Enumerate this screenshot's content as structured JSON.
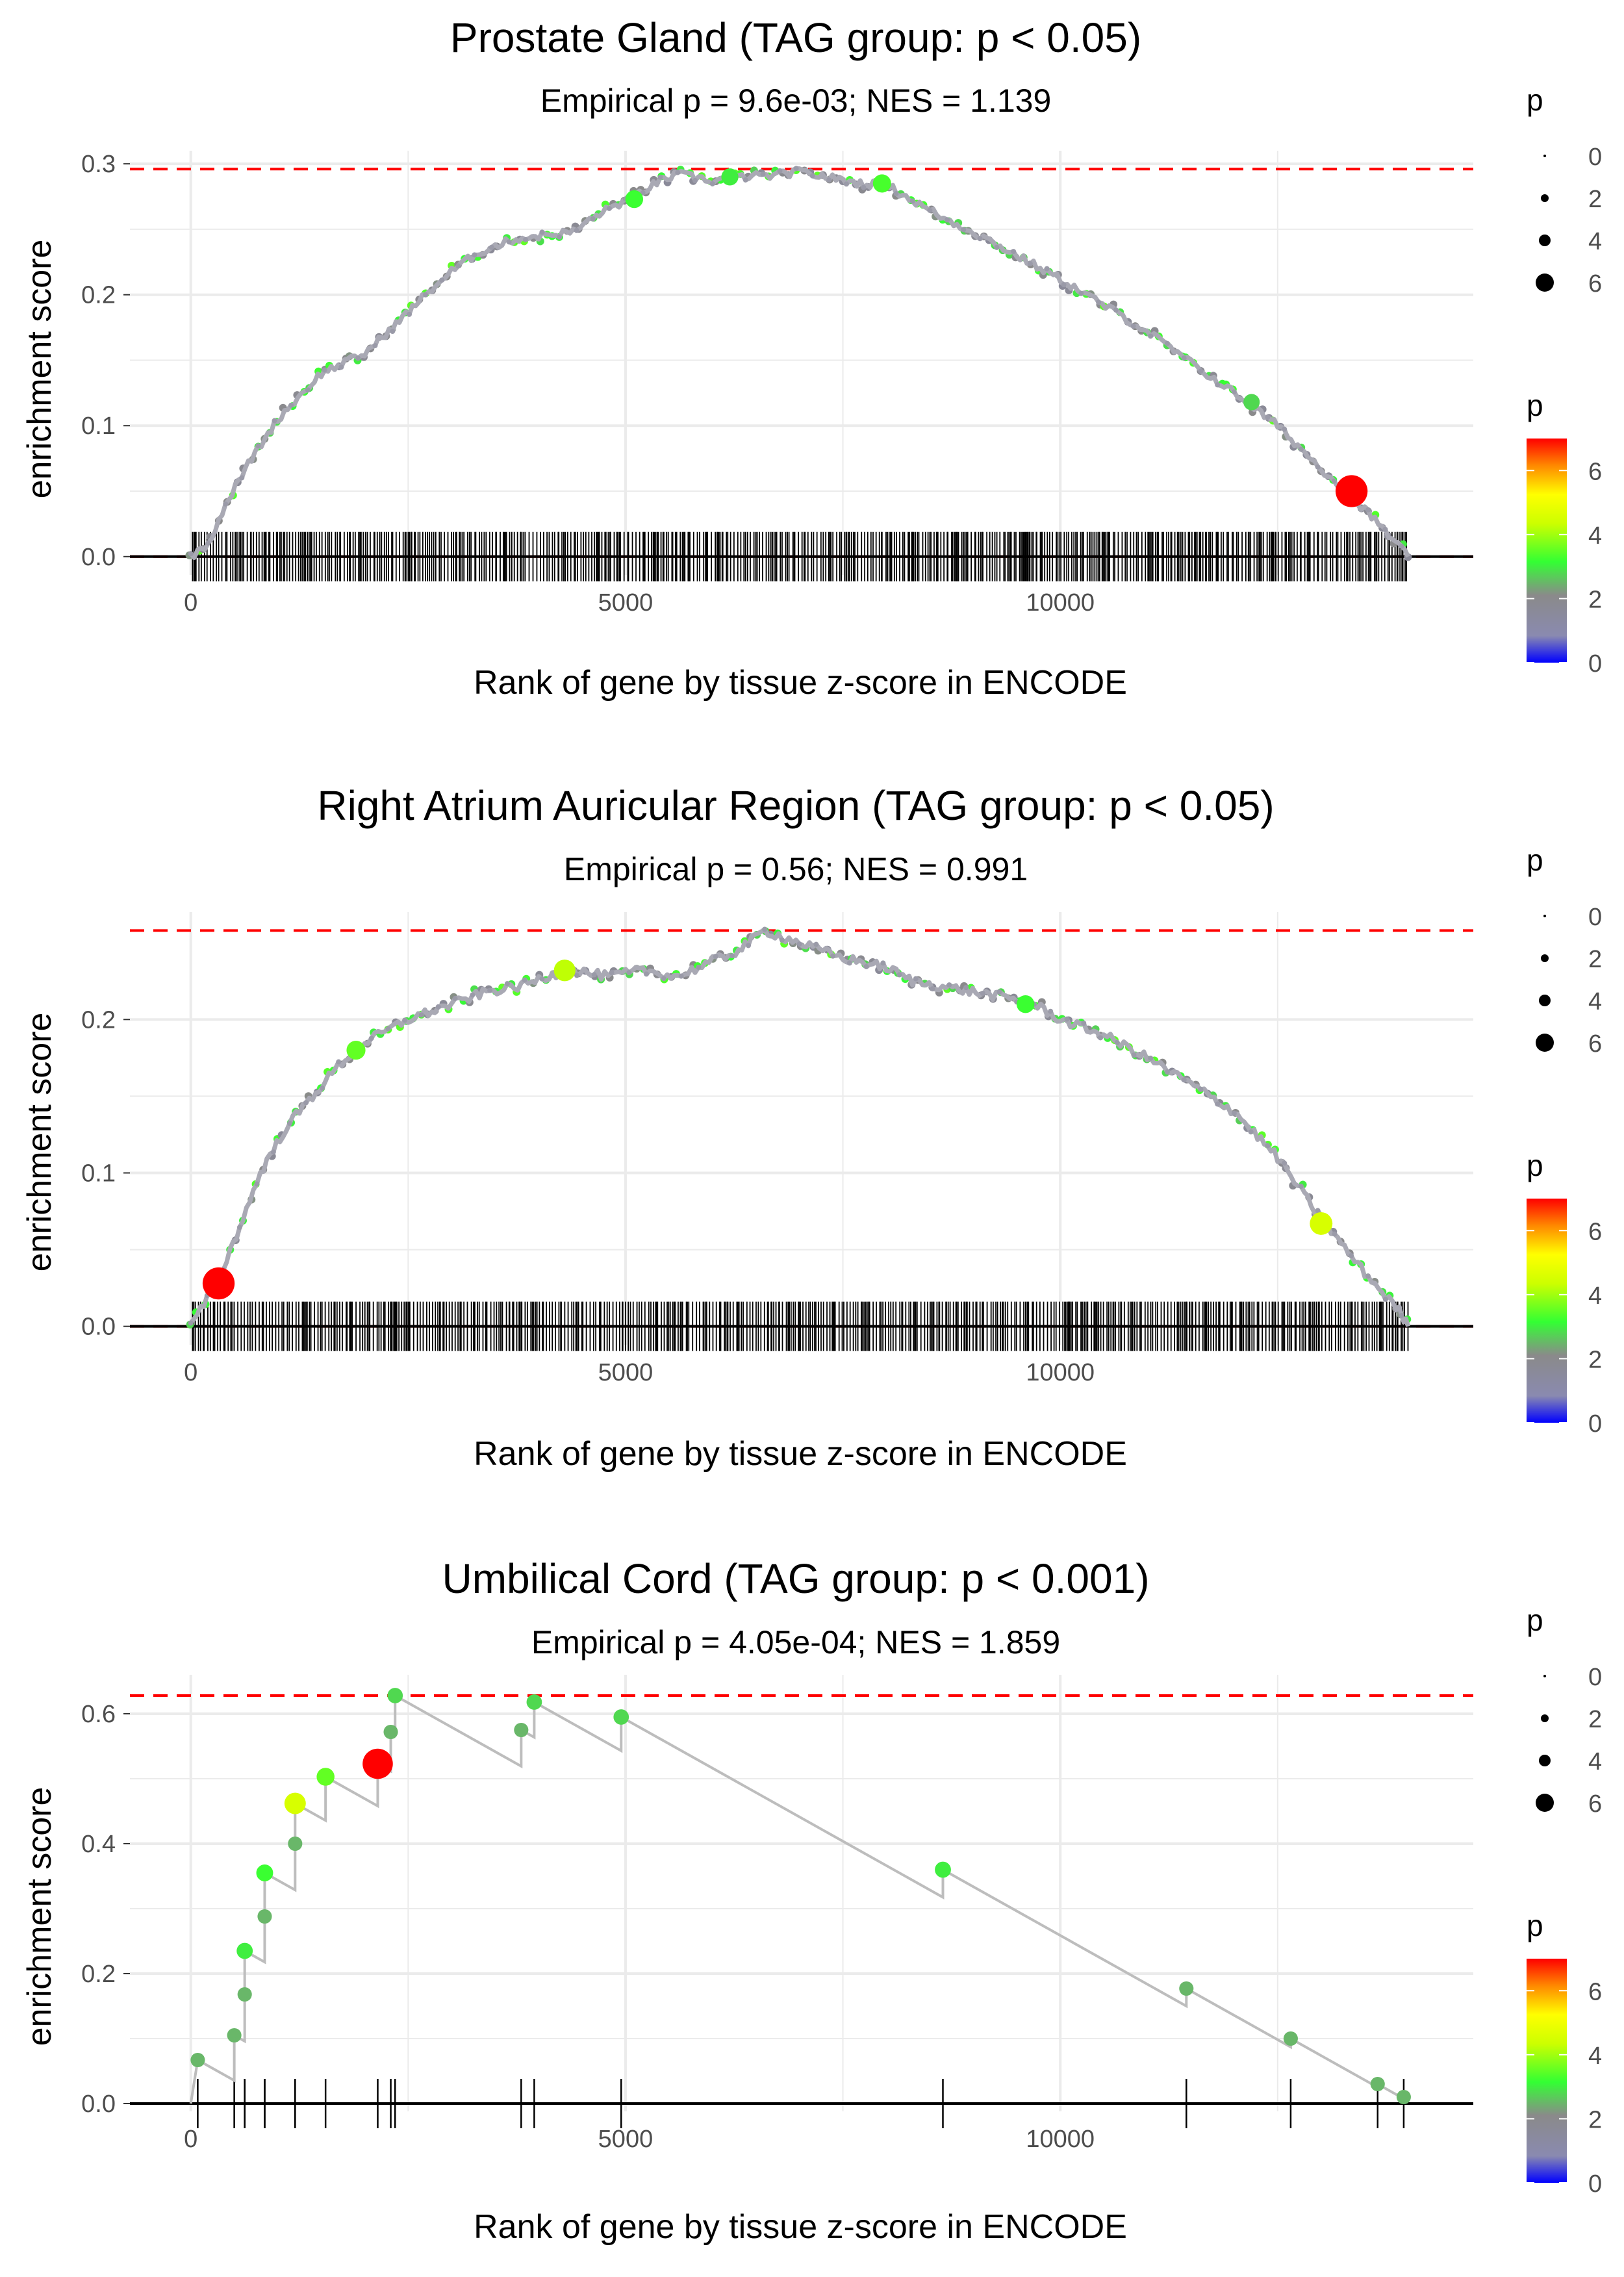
{
  "colors": {
    "curve": "#bdbdbd",
    "ref_line": "#ff0000",
    "grid": "#ebebeb",
    "axis_text": "#4d4d4d",
    "ticks_rug": "#000000"
  },
  "chart_data": [
    {
      "type": "line",
      "title": "Prostate Gland (TAG group: p < 0.05)",
      "subtitle": "Empirical p = 9.6e-03; NES = 1.139",
      "xlabel": "Rank of gene by tissue z-score in ENCODE",
      "ylabel": "enrichment score",
      "xlim": [
        -700,
        14750
      ],
      "ylim": [
        -0.014,
        0.31
      ],
      "xticks": [
        0,
        5000,
        10000
      ],
      "xtick_labels": [
        "0",
        "5000",
        "10000"
      ],
      "yticks": [
        0.0,
        0.1,
        0.2,
        0.3
      ],
      "ytick_labels": [
        "0.0",
        "0.1",
        "0.2",
        "0.3"
      ],
      "max_es": 0.296,
      "grid": true,
      "n_genes": 14000,
      "dense": true,
      "curve": [
        [
          0,
          0
        ],
        [
          200,
          0.01
        ],
        [
          400,
          0.04
        ],
        [
          700,
          0.075
        ],
        [
          1000,
          0.105
        ],
        [
          1500,
          0.14
        ],
        [
          2000,
          0.155
        ],
        [
          2400,
          0.18
        ],
        [
          2700,
          0.2
        ],
        [
          3000,
          0.218
        ],
        [
          3300,
          0.232
        ],
        [
          3700,
          0.242
        ],
        [
          4000,
          0.245
        ],
        [
          4400,
          0.248
        ],
        [
          4700,
          0.262
        ],
        [
          5000,
          0.272
        ],
        [
          5400,
          0.287
        ],
        [
          5600,
          0.292
        ],
        [
          6000,
          0.287
        ],
        [
          6300,
          0.29
        ],
        [
          6700,
          0.291
        ],
        [
          7000,
          0.294
        ],
        [
          7300,
          0.29
        ],
        [
          7700,
          0.285
        ],
        [
          8000,
          0.284
        ],
        [
          8300,
          0.272
        ],
        [
          8700,
          0.257
        ],
        [
          9000,
          0.248
        ],
        [
          9500,
          0.23
        ],
        [
          10000,
          0.212
        ],
        [
          10400,
          0.196
        ],
        [
          11000,
          0.172
        ],
        [
          11500,
          0.148
        ],
        [
          12000,
          0.125
        ],
        [
          12500,
          0.1
        ],
        [
          13000,
          0.067
        ],
        [
          13300,
          0.05
        ],
        [
          13700,
          0.022
        ],
        [
          14000,
          0.0
        ]
      ],
      "highlight_points": [
        [
          13350,
          0.05,
          7.0
        ],
        [
          6200,
          0.29,
          3.0
        ],
        [
          7950,
          0.285,
          3.3
        ],
        [
          12200,
          0.118,
          2.8
        ],
        [
          5100,
          0.273,
          3.2
        ]
      ],
      "legend_size": {
        "title": "p",
        "labels": [
          "0",
          "2",
          "4",
          "6"
        ]
      },
      "legend_color": {
        "title": "p",
        "labels": [
          "0",
          "2",
          "4",
          "6"
        ],
        "range": [
          0,
          7
        ]
      }
    },
    {
      "type": "line",
      "title": "Right Atrium Auricular Region (TAG group: p < 0.05)",
      "subtitle": "Empirical p = 0.56; NES = 0.991",
      "xlabel": "Rank of gene by tissue z-score in ENCODE",
      "ylabel": "enrichment score",
      "xlim": [
        -700,
        14750
      ],
      "ylim": [
        -0.012,
        0.27
      ],
      "xticks": [
        0,
        5000,
        10000
      ],
      "xtick_labels": [
        "0",
        "5000",
        "10000"
      ],
      "yticks": [
        0.0,
        0.1,
        0.2
      ],
      "ytick_labels": [
        "0.0",
        "0.1",
        "0.2"
      ],
      "max_es": 0.258,
      "grid": true,
      "n_genes": 14000,
      "dense": true,
      "curve": [
        [
          0,
          0
        ],
        [
          300,
          0.028
        ],
        [
          600,
          0.07
        ],
        [
          800,
          0.1
        ],
        [
          1100,
          0.13
        ],
        [
          1400,
          0.15
        ],
        [
          1700,
          0.17
        ],
        [
          2000,
          0.185
        ],
        [
          2500,
          0.2
        ],
        [
          3000,
          0.21
        ],
        [
          3400,
          0.218
        ],
        [
          3800,
          0.222
        ],
        [
          4200,
          0.23
        ],
        [
          4400,
          0.232
        ],
        [
          4800,
          0.228
        ],
        [
          5200,
          0.232
        ],
        [
          5600,
          0.228
        ],
        [
          6000,
          0.238
        ],
        [
          6300,
          0.245
        ],
        [
          6600,
          0.258
        ],
        [
          7000,
          0.25
        ],
        [
          7500,
          0.24
        ],
        [
          8000,
          0.234
        ],
        [
          8300,
          0.225
        ],
        [
          8800,
          0.22
        ],
        [
          9300,
          0.215
        ],
        [
          9700,
          0.21
        ],
        [
          10000,
          0.2
        ],
        [
          10500,
          0.19
        ],
        [
          11000,
          0.175
        ],
        [
          11500,
          0.158
        ],
        [
          12000,
          0.14
        ],
        [
          12500,
          0.11
        ],
        [
          13000,
          0.07
        ],
        [
          13500,
          0.035
        ],
        [
          13900,
          0.01
        ],
        [
          14000,
          0.0
        ]
      ],
      "highlight_points": [
        [
          320,
          0.028,
          7.0
        ],
        [
          13000,
          0.067,
          4.5
        ],
        [
          4300,
          0.232,
          4.2
        ],
        [
          1900,
          0.18,
          3.5
        ],
        [
          9600,
          0.21,
          3.2
        ]
      ],
      "legend_size": {
        "title": "p",
        "labels": [
          "0",
          "2",
          "4",
          "6"
        ]
      },
      "legend_color": {
        "title": "p",
        "labels": [
          "0",
          "2",
          "4",
          "6"
        ],
        "range": [
          0,
          7
        ]
      }
    },
    {
      "type": "line",
      "title": "Umbilical Cord (TAG group: p < 0.001)",
      "subtitle": "Empirical p = 4.05e-04; NES = 1.859",
      "xlabel": "Rank of gene by tissue z-score in ENCODE",
      "ylabel": "enrichment score",
      "xlim": [
        -700,
        14750
      ],
      "ylim": [
        -0.012,
        0.66
      ],
      "xticks": [
        0,
        5000,
        10000
      ],
      "xtick_labels": [
        "0",
        "5000",
        "10000"
      ],
      "yticks": [
        0.0,
        0.2,
        0.4,
        0.6
      ],
      "ytick_labels": [
        "0.0",
        "0.2",
        "0.4",
        "0.6"
      ],
      "max_es": 0.628,
      "grid": true,
      "n_genes": 14000,
      "dense": false,
      "hits": [
        {
          "x": 80,
          "y": 0.067,
          "p": 2.5
        },
        {
          "x": 500,
          "y": 0.105,
          "p": 2.5
        },
        {
          "x": 620,
          "y": 0.168,
          "p": 2.5
        },
        {
          "x": 620,
          "y": 0.235,
          "p": 3.0
        },
        {
          "x": 850,
          "y": 0.288,
          "p": 2.5
        },
        {
          "x": 850,
          "y": 0.355,
          "p": 3.2
        },
        {
          "x": 1200,
          "y": 0.4,
          "p": 2.5
        },
        {
          "x": 1200,
          "y": 0.462,
          "p": 4.5
        },
        {
          "x": 1550,
          "y": 0.503,
          "p": 3.5
        },
        {
          "x": 2150,
          "y": 0.523,
          "p": 7.0
        },
        {
          "x": 2300,
          "y": 0.572,
          "p": 2.5
        },
        {
          "x": 2350,
          "y": 0.628,
          "p": 2.8
        },
        {
          "x": 3800,
          "y": 0.575,
          "p": 2.5
        },
        {
          "x": 3950,
          "y": 0.618,
          "p": 2.8
        },
        {
          "x": 4950,
          "y": 0.595,
          "p": 2.8
        },
        {
          "x": 8650,
          "y": 0.36,
          "p": 3.0
        },
        {
          "x": 11450,
          "y": 0.177,
          "p": 2.5
        },
        {
          "x": 12650,
          "y": 0.1,
          "p": 2.5
        },
        {
          "x": 13650,
          "y": 0.03,
          "p": 2.5
        },
        {
          "x": 13950,
          "y": 0.01,
          "p": 2.5
        }
      ],
      "legend_size": {
        "title": "p",
        "labels": [
          "0",
          "2",
          "4",
          "6"
        ]
      },
      "legend_color": {
        "title": "p",
        "labels": [
          "0",
          "2",
          "4",
          "6"
        ],
        "range": [
          0,
          7
        ]
      }
    }
  ]
}
